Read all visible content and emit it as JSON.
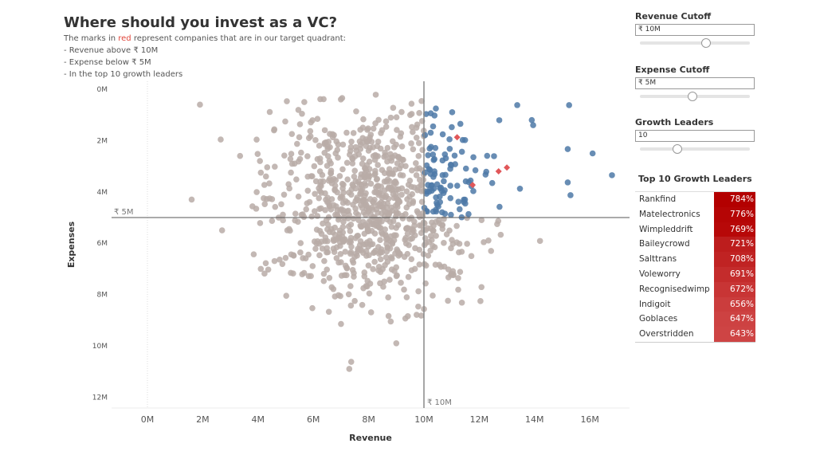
{
  "header": {
    "title": "Where should you invest as a VC?",
    "sub_pre": "The marks in ",
    "sub_red": "red",
    "sub_post": " represent companies that are in our target quadrant:",
    "bullets": [
      "- Revenue above ₹ 10M",
      "- Expense below ₹ 5M",
      "- In the top 10 growth leaders"
    ]
  },
  "controls": [
    {
      "label": "Revenue Cutoff",
      "value": "₹ 10M",
      "slider_fraction": 0.6
    },
    {
      "label": "Expense Cutoff",
      "value": "₹ 5M",
      "slider_fraction": 0.48
    },
    {
      "label": "Growth Leaders",
      "value": "10",
      "slider_fraction": 0.34
    }
  ],
  "table": {
    "title": "Top 10 Growth Leaders",
    "rows": [
      {
        "name": "Rankfind",
        "value": "784%",
        "color": "#b30000"
      },
      {
        "name": "Matelectronics",
        "value": "776%",
        "color": "#b50505"
      },
      {
        "name": "Wimpleddrift",
        "value": "769%",
        "color": "#b70808"
      },
      {
        "name": "Baileycrowd",
        "value": "721%",
        "color": "#bd1d1d"
      },
      {
        "name": "Salttrans",
        "value": "708%",
        "color": "#c02323"
      },
      {
        "name": "Voleworry",
        "value": "691%",
        "color": "#c42c2c"
      },
      {
        "name": "Recognisedwimp",
        "value": "672%",
        "color": "#c83535"
      },
      {
        "name": "Indigoit",
        "value": "656%",
        "color": "#cb3d3d"
      },
      {
        "name": "Goblaces",
        "value": "647%",
        "color": "#cd4242"
      },
      {
        "name": "Overstridden",
        "value": "643%",
        "color": "#ce4444"
      }
    ]
  },
  "chart_data": {
    "type": "scatter",
    "xlabel": "Revenue",
    "ylabel": "Expenses",
    "xlim": [
      -1.3,
      17.5
    ],
    "ylim": [
      -0.3,
      12.5
    ],
    "xticks": [
      "0M",
      "2M",
      "4M",
      "6M",
      "8M",
      "10M",
      "12M",
      "14M",
      "16M"
    ],
    "yticks": [
      "0M",
      "2M",
      "4M",
      "6M",
      "8M",
      "10M",
      "12M"
    ],
    "ref_lines": {
      "revenue": 10,
      "revenue_label": "₹ 10M",
      "expense": 5,
      "expense_label": "₹ 5M"
    },
    "colors": {
      "other": "#b9aca7",
      "quadrant": "#4e79a7",
      "target": "#e15759"
    },
    "target_points": [
      [
        11.2,
        1.87
      ],
      [
        12.7,
        3.2
      ],
      [
        13.0,
        3.05
      ],
      [
        11.76,
        3.73
      ]
    ],
    "outliers": [
      [
        15.25,
        0.62
      ],
      [
        15.2,
        2.33
      ],
      [
        16.1,
        2.5
      ],
      [
        16.8,
        3.35
      ],
      [
        15.2,
        3.63
      ],
      [
        15.3,
        4.13
      ],
      [
        13.95,
        1.4
      ],
      [
        13.9,
        1.2
      ],
      [
        1.6,
        4.3
      ],
      [
        2.65,
        1.96
      ],
      [
        3.35,
        2.6
      ],
      [
        2.7,
        5.5
      ],
      [
        7.3,
        10.9
      ],
      [
        9.0,
        9.9
      ],
      [
        4.1,
        7.0
      ],
      [
        1.9,
        0.6
      ]
    ],
    "cloud": {
      "count": 950,
      "x_mean": 8.2,
      "x_sd": 1.9,
      "y_mean": 4.4,
      "y_sd": 1.9
    }
  }
}
